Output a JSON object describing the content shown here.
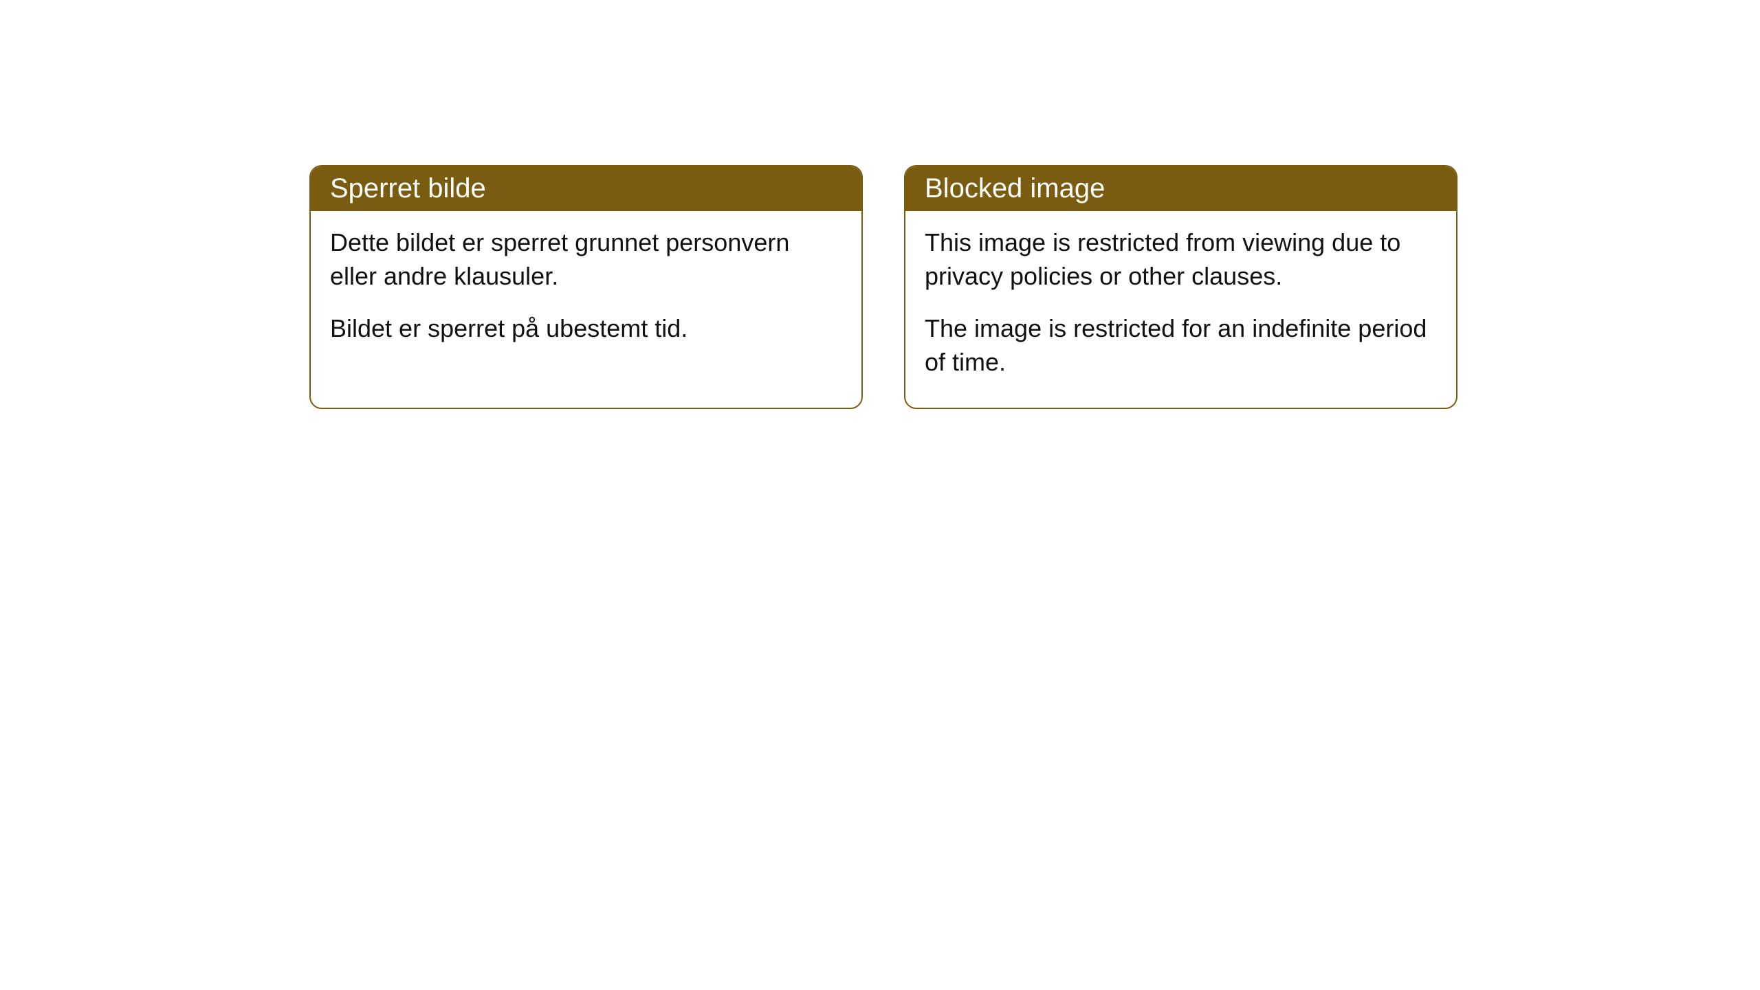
{
  "cards": [
    {
      "title": "Sperret bilde",
      "paragraph1": "Dette bildet er sperret grunnet personvern eller andre klausuler.",
      "paragraph2": "Bildet er sperret på ubestemt tid."
    },
    {
      "title": "Blocked image",
      "paragraph1": "This image is restricted from viewing due to privacy policies or other clauses.",
      "paragraph2": "The image is restricted for an indefinite period of time."
    }
  ],
  "style": {
    "header_background": "#7a5c10",
    "header_text_color": "#ffffff",
    "border_color": "#7a5c10",
    "body_background": "#ffffff",
    "body_text_color": "#111111",
    "border_radius": 18,
    "header_fontsize": 40,
    "body_fontsize": 36
  }
}
